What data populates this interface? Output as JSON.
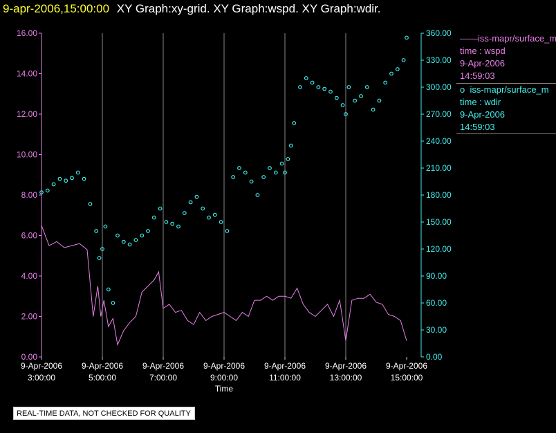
{
  "header": {
    "timestamp": "9-apr-2006,15:00:00",
    "graphs": "XY Graph:xy-grid.  XY Graph:wspd.  XY Graph:wdir."
  },
  "legend": [
    {
      "symbol": "——",
      "label": "iss-mapr/surface_m",
      "line2": "time : wspd",
      "line3": "9-Apr-2006",
      "line4": "14:59:03"
    },
    {
      "symbol": "o",
      "label": "iss-mapr/surface_m",
      "line2": "time : wdir",
      "line3": "9-Apr-2006",
      "line4": "14:59:03"
    }
  ],
  "notice": "REAL-TIME DATA, NOT CHECKED FOR QUALITY",
  "colors": {
    "wspd": "#e880e8",
    "wdir": "#44eeee",
    "grid": "#888888"
  },
  "chart_data": {
    "type": "line",
    "xlabel": "Time",
    "x_ticks": [
      {
        "date": "9-Apr-2006",
        "time": "3:00:00"
      },
      {
        "date": "9-Apr-2006",
        "time": "5:00:00"
      },
      {
        "date": "9-Apr-2006",
        "time": "7:00:00"
      },
      {
        "date": "9-Apr-2006",
        "time": "9:00:00"
      },
      {
        "date": "9-Apr-2006",
        "time": "11:00:00"
      },
      {
        "date": "9-Apr-2006",
        "time": "13:00:00"
      },
      {
        "date": "9-Apr-2006",
        "time": "15:00:00"
      }
    ],
    "xlim_hours": [
      3,
      15
    ],
    "y_left": {
      "lim": [
        0,
        16
      ],
      "ticks": [
        "0.00",
        "2.00",
        "4.00",
        "6.00",
        "8.00",
        "10.00",
        "12.00",
        "14.00",
        "16.00"
      ]
    },
    "y_right": {
      "lim": [
        0,
        360
      ],
      "ticks": [
        "0.00",
        "30.00",
        "60.00",
        "90.00",
        "120.00",
        "150.00",
        "180.00",
        "210.00",
        "240.00",
        "270.00",
        "300.00",
        "330.00",
        "360.00"
      ]
    },
    "vertical_grid": true,
    "series": [
      {
        "key": "wspd",
        "axis": "left",
        "style": "line",
        "x": [
          3.0,
          3.25,
          3.5,
          3.75,
          4.0,
          4.25,
          4.5,
          4.7,
          4.85,
          4.95,
          5.05,
          5.2,
          5.35,
          5.5,
          5.7,
          5.9,
          6.1,
          6.3,
          6.5,
          6.7,
          6.85,
          7.0,
          7.2,
          7.4,
          7.6,
          7.8,
          8.0,
          8.2,
          8.4,
          8.6,
          8.8,
          9.0,
          9.2,
          9.4,
          9.6,
          9.8,
          10.0,
          10.2,
          10.4,
          10.6,
          10.8,
          11.0,
          11.2,
          11.4,
          11.6,
          11.8,
          12.0,
          12.2,
          12.4,
          12.6,
          12.8,
          13.0,
          13.2,
          13.4,
          13.6,
          13.8,
          14.0,
          14.2,
          14.4,
          14.6,
          14.8,
          15.0
        ],
        "y": [
          6.5,
          5.5,
          5.7,
          5.4,
          5.5,
          5.6,
          5.3,
          2.0,
          3.5,
          2.0,
          2.8,
          1.5,
          1.9,
          0.6,
          1.3,
          1.7,
          2.0,
          3.2,
          3.5,
          3.8,
          4.2,
          2.4,
          2.6,
          2.2,
          2.3,
          1.8,
          1.6,
          2.2,
          1.8,
          2.0,
          2.1,
          2.2,
          2.0,
          1.8,
          2.2,
          2.0,
          2.8,
          2.8,
          3.0,
          2.8,
          3.0,
          3.0,
          2.9,
          3.4,
          2.6,
          2.2,
          2.0,
          2.3,
          2.6,
          2.0,
          2.8,
          0.8,
          2.8,
          2.9,
          2.9,
          3.1,
          2.7,
          2.6,
          2.1,
          2.0,
          1.8,
          0.8
        ]
      },
      {
        "key": "wdir",
        "axis": "right",
        "style": "scatter",
        "x": [
          3.0,
          3.2,
          3.4,
          3.6,
          3.8,
          4.0,
          4.2,
          4.4,
          4.6,
          4.8,
          4.9,
          5.0,
          5.1,
          5.2,
          5.35,
          5.5,
          5.7,
          5.9,
          6.1,
          6.3,
          6.5,
          6.7,
          6.9,
          7.1,
          7.3,
          7.5,
          7.7,
          7.9,
          8.1,
          8.3,
          8.5,
          8.7,
          8.9,
          9.1,
          9.3,
          9.5,
          9.7,
          9.9,
          10.1,
          10.3,
          10.5,
          10.7,
          10.9,
          11.0,
          11.1,
          11.2,
          11.3,
          11.5,
          11.7,
          11.9,
          12.1,
          12.3,
          12.5,
          12.7,
          12.9,
          13.0,
          13.1,
          13.3,
          13.5,
          13.7,
          13.9,
          14.1,
          14.3,
          14.5,
          14.7,
          14.9,
          15.0
        ],
        "y": [
          183,
          185,
          192,
          198,
          196,
          199,
          205,
          198,
          170,
          140,
          110,
          120,
          145,
          75,
          60,
          135,
          128,
          125,
          130,
          135,
          140,
          155,
          165,
          150,
          148,
          145,
          160,
          172,
          178,
          165,
          155,
          158,
          150,
          140,
          200,
          210,
          205,
          195,
          180,
          200,
          210,
          205,
          215,
          205,
          220,
          235,
          260,
          300,
          310,
          305,
          300,
          298,
          295,
          288,
          280,
          270,
          300,
          285,
          290,
          300,
          275,
          285,
          305,
          315,
          320,
          330,
          355
        ]
      }
    ]
  }
}
